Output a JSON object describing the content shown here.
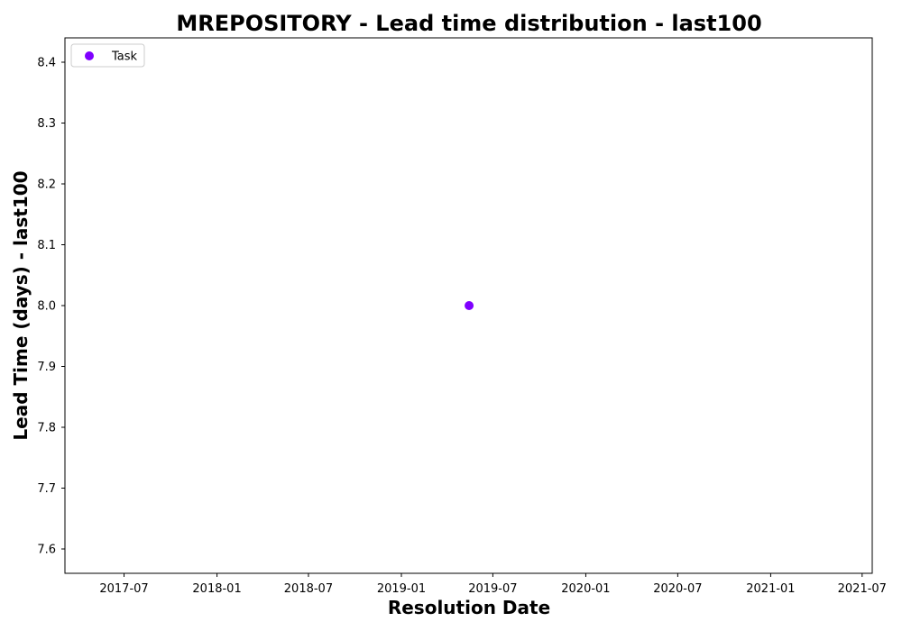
{
  "chart_data": {
    "type": "scatter",
    "title": "MREPOSITORY - Lead time distribution - last100",
    "xlabel": "Resolution Date",
    "ylabel": "Lead Time (days) - last100",
    "x_axis_type": "date",
    "xlim": [
      "2017-03-06",
      "2021-07-21"
    ],
    "ylim": [
      7.56,
      8.44
    ],
    "x_tick_labels": [
      "2017-07",
      "2018-01",
      "2018-07",
      "2019-01",
      "2019-07",
      "2020-01",
      "2020-07",
      "2021-01",
      "2021-07"
    ],
    "x_tick_dates": [
      "2017-07-01",
      "2018-01-01",
      "2018-07-01",
      "2019-01-01",
      "2019-07-01",
      "2020-01-01",
      "2020-07-01",
      "2021-01-01",
      "2021-07-01"
    ],
    "y_ticks": [
      7.6,
      7.7,
      7.8,
      7.9,
      8.0,
      8.1,
      8.2,
      8.3,
      8.4
    ],
    "y_tick_labels": [
      "7.6",
      "7.7",
      "7.8",
      "7.9",
      "8.0",
      "8.1",
      "8.2",
      "8.3",
      "8.4"
    ],
    "grid": false,
    "legend_position": "top-left",
    "series": [
      {
        "name": "Task",
        "color": "#7f00ff",
        "marker": "circle",
        "points": [
          {
            "x": "2019-05-15",
            "y": 8.0
          }
        ]
      }
    ]
  }
}
